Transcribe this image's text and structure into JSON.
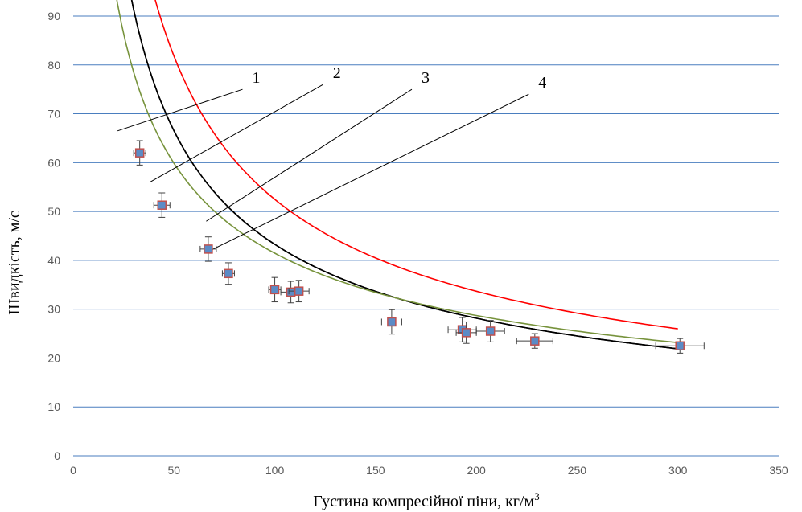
{
  "chart_data": {
    "type": "scatter",
    "title": "",
    "xlabel": "Густина компресійної піни, кг/м",
    "xlabel_sup": "3",
    "ylabel": "Швидкість, м/с",
    "xlim": [
      0,
      350
    ],
    "ylim": [
      0,
      90
    ],
    "x_ticks": [
      0,
      50,
      100,
      150,
      200,
      250,
      300,
      350
    ],
    "y_ticks": [
      0,
      10,
      20,
      30,
      40,
      50,
      60,
      70,
      80,
      90
    ],
    "grid": "horizontal",
    "colors": {
      "grid": "#4a7ebf",
      "marker_fill": "#5b8bc6",
      "marker_edge": "#c0504d",
      "error_bar": "#404040",
      "curve_1": "#000000",
      "curve_2": "#000000",
      "curve_3": "#ff0000",
      "curve_4": "#77933c",
      "callout_line": "#000000"
    },
    "series": [
      {
        "kind": "points",
        "x": [
          33,
          44,
          67,
          77,
          100,
          108,
          112,
          158,
          193,
          195,
          207,
          229,
          301
        ],
        "y": [
          62,
          51.3,
          42.3,
          37.3,
          34,
          33.5,
          33.7,
          27.4,
          25.8,
          25.2,
          25.5,
          23.5,
          22.5
        ],
        "y_err": [
          2.5,
          2.5,
          2.5,
          2.2,
          2.5,
          2.2,
          2.2,
          2.5,
          2.5,
          2.2,
          2.2,
          1.5,
          1.5
        ],
        "x_err": [
          3,
          4,
          4,
          3,
          3,
          5,
          5,
          5,
          7,
          5,
          7,
          9,
          12
        ]
      },
      {
        "kind": "curve",
        "x": [
          20,
          300
        ],
        "model": "power",
        "k": 752,
        "n": 0.62
      },
      {
        "kind": "curve",
        "x": [
          20,
          300
        ],
        "model": "power",
        "k": 752,
        "n": 0.62
      },
      {
        "kind": "curve",
        "x": [
          20,
          300
        ],
        "model": "power",
        "k": 1000,
        "n": 0.64
      },
      {
        "kind": "curve",
        "x": [
          20,
          300
        ],
        "model": "power",
        "k": 476,
        "n": 0.53
      }
    ],
    "annotations": [
      {
        "text": "1",
        "target_x": 22,
        "target_y": 66.5,
        "label_x": 84,
        "label_y": 75
      },
      {
        "text": "2",
        "target_x": 38,
        "target_y": 56,
        "label_x": 124,
        "label_y": 76
      },
      {
        "text": "3",
        "target_x": 66,
        "target_y": 48,
        "label_x": 168,
        "label_y": 75
      },
      {
        "text": "4",
        "target_x": 68,
        "target_y": 42,
        "label_x": 226,
        "label_y": 74
      }
    ]
  }
}
